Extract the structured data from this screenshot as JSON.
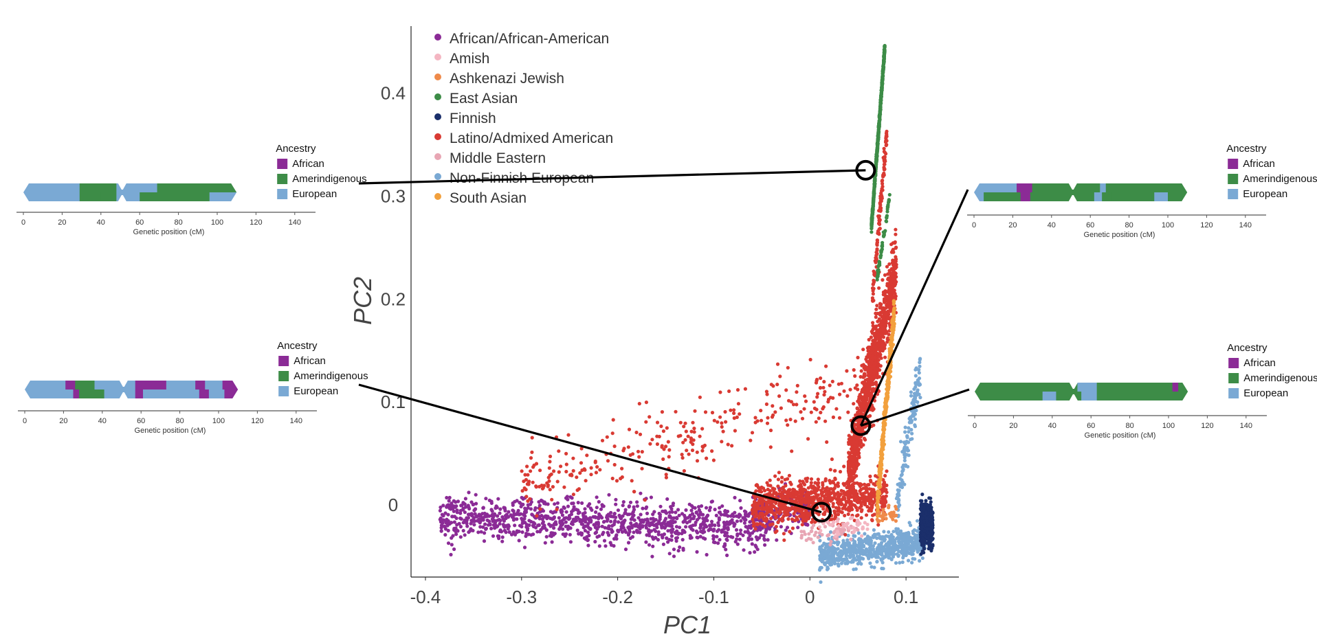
{
  "chart_data": [
    {
      "type": "scatter",
      "xlabel": "PC1",
      "ylabel": "PC2",
      "xlim": [
        -0.415,
        0.155
      ],
      "ylim": [
        -0.07,
        0.465
      ],
      "x_ticks": [
        -0.4,
        -0.3,
        -0.2,
        -0.1,
        0,
        0.1
      ],
      "x_tick_labels": [
        "-0.4",
        "-0.3",
        "-0.2",
        "-0.1",
        "0",
        "0.1"
      ],
      "y_ticks": [
        0,
        0.1,
        0.2,
        0.3,
        0.4
      ],
      "y_tick_labels": [
        "0",
        "0.1",
        "0.2",
        "0.3",
        "0.4"
      ],
      "grid": false,
      "legend_position": "top-left",
      "series": [
        {
          "name": "African/African-American",
          "color": "#8b2b96",
          "clusters": [
            {
              "x_range": [
                -0.385,
                -0.04
              ],
              "y_center_start": -0.012,
              "y_center_end": -0.022,
              "spread": 0.018,
              "count": 1100
            },
            {
              "x_range": [
                -0.06,
                -0.0
              ],
              "y_center_start": -0.005,
              "y_center_end": -0.01,
              "spread": 0.015,
              "count": 150
            }
          ]
        },
        {
          "name": "Amish",
          "color": "#f4b6c2",
          "clusters": [
            {
              "x_range": [
                0.01,
                0.06
              ],
              "y_center_start": -0.02,
              "y_center_end": -0.02,
              "spread": 0.008,
              "count": 40
            }
          ]
        },
        {
          "name": "Ashkenazi Jewish",
          "color": "#ef8a4a",
          "clusters": [
            {
              "x_range": [
                0.07,
                0.09
              ],
              "y_center_start": -0.01,
              "y_center_end": -0.01,
              "spread": 0.008,
              "count": 40
            }
          ]
        },
        {
          "name": "East Asian",
          "color": "#3d8c47",
          "clusters": [
            {
              "x_range": [
                0.064,
                0.078
              ],
              "y_center_start": 0.27,
              "y_center_end": 0.445,
              "spread": 0.004,
              "count": 600
            },
            {
              "x_range": [
                0.07,
                0.083
              ],
              "y_center_start": 0.22,
              "y_center_end": 0.3,
              "spread": 0.003,
              "count": 60
            }
          ]
        },
        {
          "name": "Finnish",
          "color": "#1b2f6b",
          "clusters": [
            {
              "x_range": [
                0.115,
                0.128
              ],
              "y_center_start": -0.02,
              "y_center_end": -0.02,
              "spread": 0.018,
              "count": 400
            }
          ]
        },
        {
          "name": "Latino/Admixed American",
          "color": "#d93a33",
          "clusters": [
            {
              "x_range": [
                -0.06,
                0.08
              ],
              "y_center_start": 0.0,
              "y_center_end": 0.01,
              "spread": 0.018,
              "count": 900
            },
            {
              "x_range": [
                0.04,
                0.09
              ],
              "y_center_start": 0.03,
              "y_center_end": 0.23,
              "spread": 0.03,
              "count": 1100
            },
            {
              "x_range": [
                -0.3,
                0.08
              ],
              "y_center_start": 0.02,
              "y_center_end": 0.12,
              "spread": 0.03,
              "count": 300
            },
            {
              "x_range": [
                0.065,
                0.08
              ],
              "y_center_start": 0.2,
              "y_center_end": 0.36,
              "spread": 0.01,
              "count": 120
            },
            {
              "x_range": [
                -0.3,
                -0.27
              ],
              "y_center_start": 0.02,
              "y_center_end": 0.02,
              "spread": 0.005,
              "count": 15
            }
          ]
        },
        {
          "name": "Middle Eastern",
          "color": "#e8a6b4",
          "clusters": [
            {
              "x_range": [
                -0.01,
                0.05
              ],
              "y_center_start": -0.028,
              "y_center_end": -0.025,
              "spread": 0.008,
              "count": 60
            }
          ]
        },
        {
          "name": "Non-Finnish European",
          "color": "#7aa9d4",
          "clusters": [
            {
              "x_range": [
                0.01,
                0.12
              ],
              "y_center_start": -0.05,
              "y_center_end": -0.035,
              "spread": 0.012,
              "count": 700
            },
            {
              "x_range": [
                0.09,
                0.115
              ],
              "y_center_start": 0.0,
              "y_center_end": 0.13,
              "spread": 0.02,
              "count": 150
            }
          ]
        },
        {
          "name": "South Asian",
          "color": "#f2a03d",
          "clusters": [
            {
              "x_range": [
                0.07,
                0.088
              ],
              "y_center_start": 0.0,
              "y_center_end": 0.19,
              "spread": 0.012,
              "count": 400
            }
          ]
        }
      ],
      "highlighted_points": [
        {
          "x": 0.058,
          "y": 0.325
        },
        {
          "x": 0.012,
          "y": -0.007
        },
        {
          "x": 0.053,
          "y": 0.077
        }
      ]
    },
    {
      "type": "bar",
      "name": "chromosome-painting",
      "xlabel": "Genetic position (cM)",
      "x_ticks": [
        0,
        20,
        40,
        60,
        80,
        100,
        120,
        140
      ],
      "x_tick_labels": [
        "0",
        "20",
        "40",
        "60",
        "80",
        "100",
        "120",
        "140"
      ],
      "xlim": [
        0,
        150
      ],
      "centromere_cM": 51,
      "chrom_end_cM": 110,
      "legend": {
        "title": "Ancestry",
        "entries": [
          {
            "name": "African",
            "color": "#8b2b96"
          },
          {
            "name": "Amerindigenous",
            "color": "#3d8c47"
          },
          {
            "name": "European",
            "color": "#7aa9d4"
          }
        ]
      },
      "panels": [
        {
          "id": "top-left",
          "links_to_point": 0,
          "top": [
            [
              0,
              29,
              "European"
            ],
            [
              29,
              48,
              "Amerindigenous"
            ],
            [
              48,
              69,
              "European"
            ],
            [
              69,
              110,
              "Amerindigenous"
            ]
          ],
          "bottom": [
            [
              0,
              29,
              "European"
            ],
            [
              29,
              40,
              "Amerindigenous"
            ],
            [
              40,
              48,
              "Amerindigenous"
            ],
            [
              48,
              51,
              "European"
            ],
            [
              51,
              60,
              "European"
            ],
            [
              60,
              96,
              "Amerindigenous"
            ],
            [
              96,
              110,
              "European"
            ]
          ]
        },
        {
          "id": "bottom-left",
          "links_to_point": 1,
          "top": [
            [
              0,
              21,
              "European"
            ],
            [
              21,
              26,
              "African"
            ],
            [
              26,
              31,
              "Amerindigenous"
            ],
            [
              31,
              36,
              "Amerindigenous"
            ],
            [
              36,
              57,
              "European"
            ],
            [
              57,
              73,
              "African"
            ],
            [
              73,
              88,
              "European"
            ],
            [
              88,
              93,
              "African"
            ],
            [
              93,
              102,
              "European"
            ],
            [
              102,
              110,
              "African"
            ]
          ],
          "bottom": [
            [
              0,
              25,
              "European"
            ],
            [
              25,
              28,
              "African"
            ],
            [
              28,
              41,
              "Amerindigenous"
            ],
            [
              41,
              57,
              "European"
            ],
            [
              57,
              61,
              "African"
            ],
            [
              61,
              90,
              "European"
            ],
            [
              90,
              95,
              "African"
            ],
            [
              95,
              103,
              "European"
            ],
            [
              103,
              110,
              "African"
            ]
          ]
        },
        {
          "id": "top-right",
          "links_to_point": 2,
          "top": [
            [
              0,
              22,
              "European"
            ],
            [
              22,
              30,
              "African"
            ],
            [
              30,
              65,
              "Amerindigenous"
            ],
            [
              65,
              68,
              "European"
            ],
            [
              68,
              72,
              "Amerindigenous"
            ],
            [
              72,
              110,
              "Amerindigenous"
            ]
          ],
          "bottom": [
            [
              0,
              5,
              "European"
            ],
            [
              5,
              24,
              "Amerindigenous"
            ],
            [
              24,
              29,
              "African"
            ],
            [
              29,
              62,
              "Amerindigenous"
            ],
            [
              62,
              66,
              "European"
            ],
            [
              66,
              71,
              "Amerindigenous"
            ],
            [
              71,
              93,
              "Amerindigenous"
            ],
            [
              93,
              100,
              "European"
            ],
            [
              100,
              110,
              "Amerindigenous"
            ]
          ]
        },
        {
          "id": "bottom-right",
          "links_to_point": 2,
          "top": [
            [
              0,
              53,
              "Amerindigenous"
            ],
            [
              53,
              63,
              "European"
            ],
            [
              63,
              102,
              "Amerindigenous"
            ],
            [
              102,
              105,
              "African"
            ],
            [
              105,
              110,
              "Amerindigenous"
            ]
          ],
          "bottom": [
            [
              0,
              35,
              "Amerindigenous"
            ],
            [
              35,
              42,
              "European"
            ],
            [
              42,
              55,
              "Amerindigenous"
            ],
            [
              55,
              63,
              "European"
            ],
            [
              63,
              110,
              "Amerindigenous"
            ]
          ]
        }
      ]
    }
  ]
}
